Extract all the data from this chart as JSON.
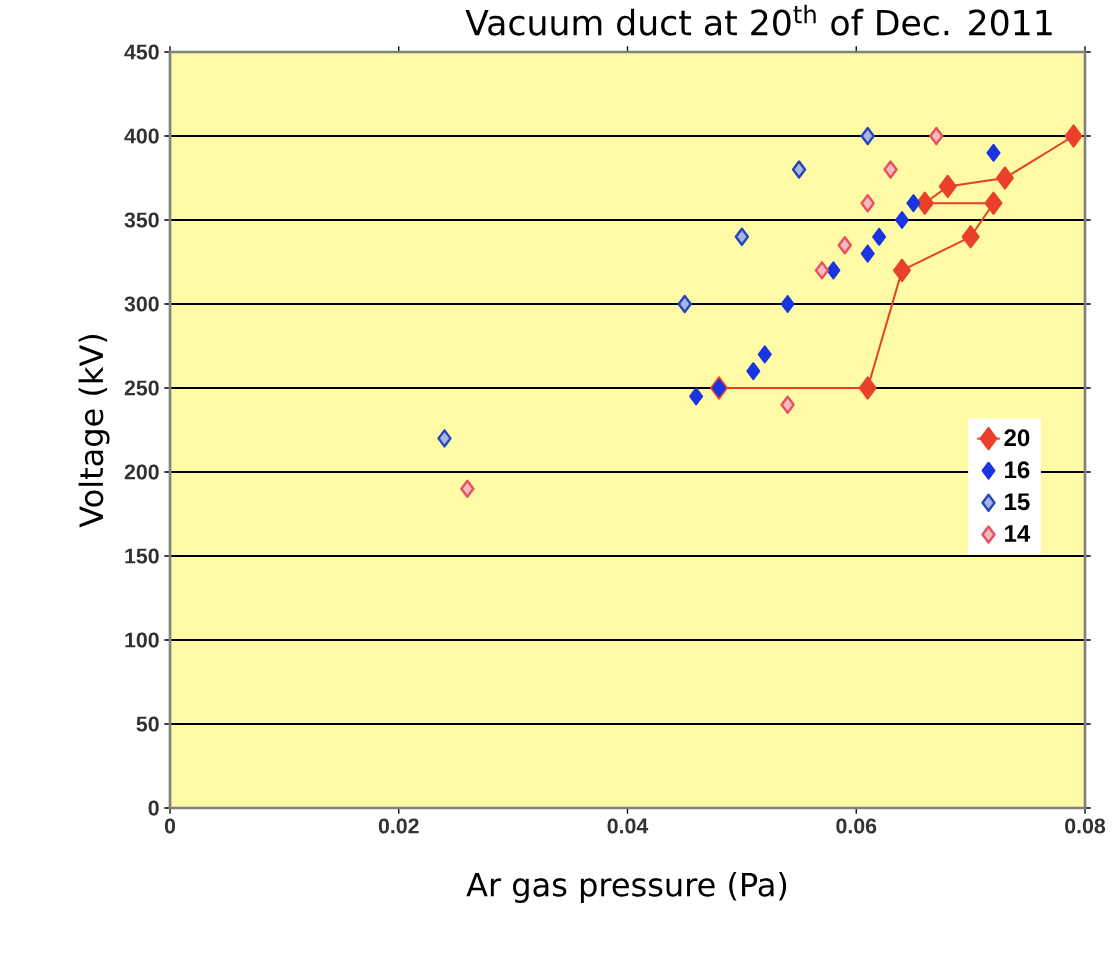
{
  "chart_data": {
    "type": "scatter",
    "title": "Vacuum duct at 20$^{th}$ of Dec. 2011",
    "xlabel": "Ar gas pressure (Pa)",
    "ylabel": "Voltage (kV)",
    "xlim": [
      0,
      0.08
    ],
    "ylim": [
      0,
      450
    ],
    "xticks": [
      0,
      0.02,
      0.04,
      0.06,
      0.08
    ],
    "yticks": [
      0,
      50,
      100,
      150,
      200,
      250,
      300,
      350,
      400,
      450
    ],
    "grid": "y",
    "legend": "right",
    "marker": "diamond",
    "series": [
      {
        "name": "20",
        "type": "line",
        "color": "#e8402a",
        "x": [
          0.048,
          0.061,
          0.064,
          0.07,
          0.072,
          0.066,
          0.068,
          0.073,
          0.079
        ],
        "values": [
          250,
          250,
          320,
          340,
          360,
          360,
          370,
          375,
          400
        ]
      },
      {
        "name": "16",
        "type": "scatter",
        "color": "#1a35e0",
        "x": [
          0.046,
          0.048,
          0.051,
          0.052,
          0.054,
          0.058,
          0.061,
          0.062,
          0.064,
          0.065,
          0.072
        ],
        "values": [
          245,
          250,
          260,
          270,
          300,
          320,
          330,
          340,
          350,
          360,
          390
        ]
      },
      {
        "name": "15",
        "type": "scatter",
        "color": "#2546b8",
        "x": [
          0.024,
          0.045,
          0.05,
          0.055,
          0.061
        ],
        "values": [
          220,
          300,
          340,
          380,
          400
        ]
      },
      {
        "name": "14",
        "type": "scatter",
        "color": "#e85060",
        "x": [
          0.026,
          0.054,
          0.057,
          0.059,
          0.061,
          0.063,
          0.067
        ],
        "values": [
          190,
          240,
          320,
          335,
          360,
          380,
          400
        ]
      }
    ]
  }
}
